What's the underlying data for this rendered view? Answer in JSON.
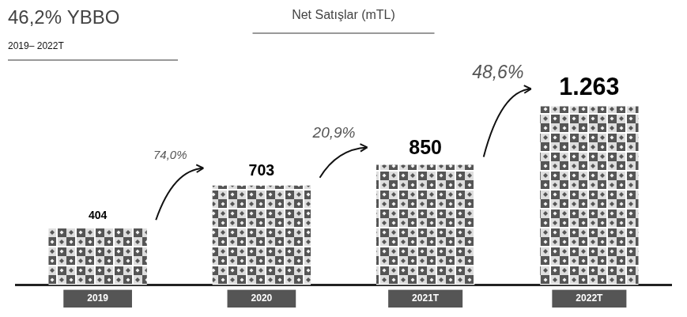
{
  "chart_data": {
    "type": "bar",
    "title": "Net Satışlar (mTL)",
    "cagr_label": "46,2% YBBO",
    "cagr_period": "2019– 2022T",
    "categories": [
      "2019",
      "2020",
      "2021T",
      "2022T"
    ],
    "values": [
      404,
      703,
      850,
      1263
    ],
    "value_labels": [
      "404",
      "703",
      "850",
      "1.263"
    ],
    "growth_labels": [
      "74,0%",
      "20,9%",
      "48,6%"
    ],
    "color": "#555555",
    "grid": false,
    "tick_labels": "x",
    "data_labels": true
  }
}
